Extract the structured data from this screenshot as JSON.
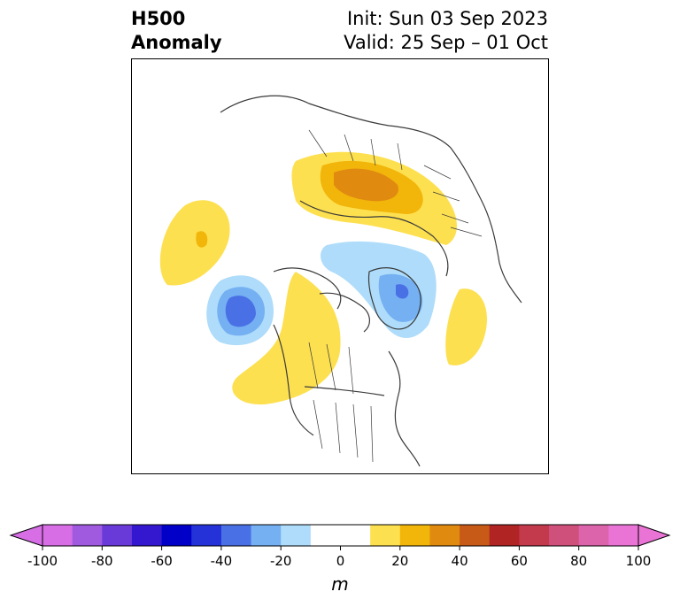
{
  "title": {
    "left_line1": "H500",
    "left_line2": "Anomaly",
    "right_line1": "Init: Sun 03 Sep 2023",
    "right_line2": "Valid: 25 Sep – 01 Oct"
  },
  "map": {
    "projection": "north-polar-stereographic",
    "land_outline_color": "#3a3a3a",
    "anomaly_features": [
      {
        "region": "northern Siberia",
        "sign": "positive",
        "peak_m": 40
      },
      {
        "region": "North Pacific (west)",
        "sign": "positive",
        "peak_m": 30
      },
      {
        "region": "Gulf of Alaska",
        "sign": "negative",
        "peak_m": -40
      },
      {
        "region": "western North America",
        "sign": "positive",
        "peak_m": 20
      },
      {
        "region": "Greenland",
        "sign": "negative",
        "peak_m": -30
      },
      {
        "region": "Arctic Ocean",
        "sign": "negative",
        "peak_m": -20
      },
      {
        "region": "North Atlantic",
        "sign": "positive",
        "peak_m": 20
      }
    ]
  },
  "colorbar": {
    "unit": "m",
    "min": -100,
    "max": 100,
    "step": 10,
    "extend": "both",
    "ticks": [
      "-100",
      "-80",
      "-60",
      "-40",
      "-20",
      "0",
      "20",
      "40",
      "60",
      "80",
      "100"
    ],
    "colors": [
      "#d76ee6",
      "#a05ae0",
      "#6a3ad8",
      "#3418d0",
      "#0000c8",
      "#2432d8",
      "#4a70e6",
      "#74b0f2",
      "#aedcfa",
      "#ffffff",
      "#ffffff",
      "#fde050",
      "#f2b50a",
      "#e08a10",
      "#c85a18",
      "#b02424",
      "#c23a4c",
      "#d0507c",
      "#dc64aa",
      "#ea74d6"
    ],
    "under_color": "#d76ee6",
    "over_color": "#ea74d6"
  }
}
